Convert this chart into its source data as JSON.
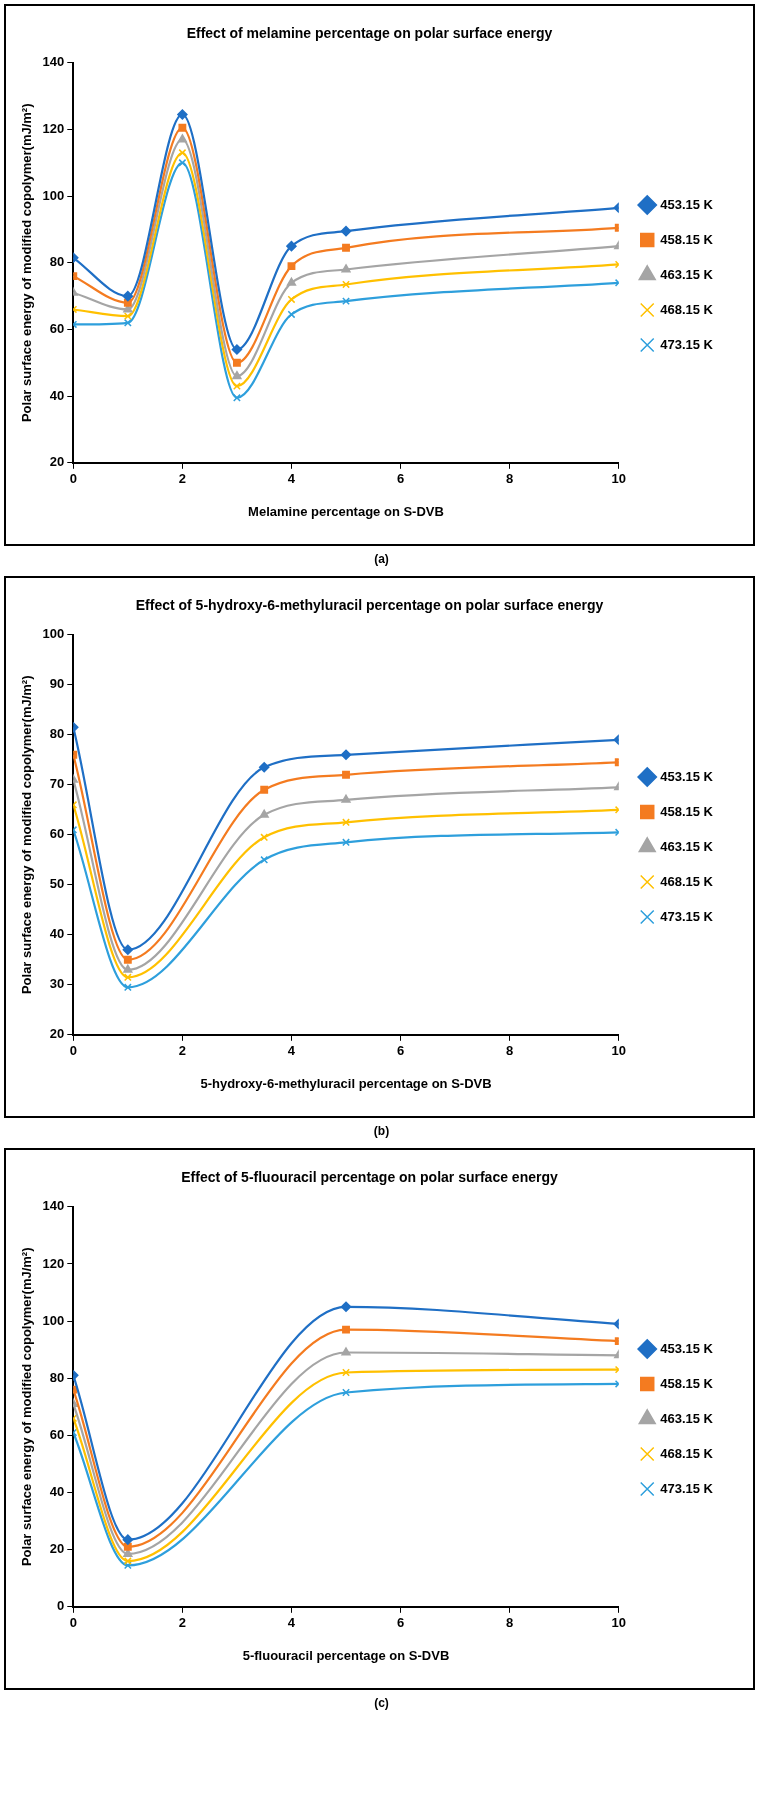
{
  "chart_data": [
    {
      "type": "line",
      "title": "Effect of melamine percentage on polar surface energy",
      "xlabel": "Melamine percentage on S-DVB",
      "ylabel": "Polar surface energy of modified copolymer(mJ/m²)",
      "annotations": [
        "(a)"
      ],
      "x": [
        0,
        1,
        2,
        3,
        4,
        5,
        10
      ],
      "xlim": [
        0,
        10
      ],
      "xticks": [
        0,
        2,
        4,
        6,
        8,
        10
      ],
      "ylim": [
        20,
        140
      ],
      "yticks": [
        20,
        40,
        60,
        80,
        100,
        120,
        140
      ],
      "grid": false,
      "legend": "right",
      "line_style": "solid",
      "series": [
        {
          "name": "453.15 K",
          "color": "#1f6fc5",
          "marker": "diamond",
          "values": [
            81.5,
            70,
            124.5,
            54,
            85,
            89.5,
            96.5
          ]
        },
        {
          "name": "458.15 K",
          "color": "#f47b20",
          "marker": "square",
          "values": [
            76,
            68,
            120.5,
            50,
            79,
            84.5,
            90.5
          ]
        },
        {
          "name": "463.15 K",
          "color": "#a5a5a5",
          "marker": "triangle",
          "values": [
            71,
            66,
            117,
            46,
            74,
            78,
            85
          ]
        },
        {
          "name": "468.15 K",
          "color": "#ffc000",
          "marker": "cross",
          "values": [
            66,
            64,
            113,
            43,
            69,
            73.5,
            79.5
          ]
        },
        {
          "name": "473.15 K",
          "color": "#2e9fdc",
          "marker": "cross",
          "values": [
            61.5,
            62,
            110,
            39.5,
            64.5,
            68.5,
            74
          ]
        }
      ]
    },
    {
      "type": "line",
      "title": "Effect of 5-hydroxy-6-methyluracil percentage on polar surface energy",
      "xlabel": "5-hydroxy-6-methyluracil percentage on S-DVB",
      "ylabel": "Polar surface energy of modified copolymer(mJ/m²)",
      "annotations": [
        "(b)"
      ],
      "x": [
        0,
        1,
        3.5,
        5,
        10
      ],
      "xlim": [
        0,
        10
      ],
      "xticks": [
        0,
        2,
        4,
        6,
        8,
        10
      ],
      "ylim": [
        20,
        100
      ],
      "yticks": [
        20,
        30,
        40,
        50,
        60,
        70,
        80,
        90,
        100
      ],
      "grid": false,
      "legend": "right",
      "line_style": "solid",
      "series": [
        {
          "name": "453.15 K",
          "color": "#1f6fc5",
          "marker": "diamond",
          "values": [
            81.5,
            37,
            73.5,
            76,
            79
          ]
        },
        {
          "name": "458.15 K",
          "color": "#f47b20",
          "marker": "square",
          "values": [
            76,
            35,
            69,
            72,
            74.5
          ]
        },
        {
          "name": "463.15 K",
          "color": "#a5a5a5",
          "marker": "triangle",
          "values": [
            71,
            33,
            64,
            67,
            69.5
          ]
        },
        {
          "name": "468.15 K",
          "color": "#ffc000",
          "marker": "cross",
          "values": [
            66,
            31.5,
            59.5,
            62.5,
            65
          ]
        },
        {
          "name": "473.15 K",
          "color": "#2e9fdc",
          "marker": "cross",
          "values": [
            61,
            29.5,
            55,
            58.5,
            60.5
          ]
        }
      ]
    },
    {
      "type": "line",
      "title": "Effect of 5-fluouracil percentage on polar surface energy",
      "xlabel": "5-fluouracil percentage on S-DVB",
      "ylabel": "Polar surface energy of modified copolymer(mJ/m²)",
      "annotations": [
        "(c)"
      ],
      "x": [
        0,
        1,
        5,
        10
      ],
      "xlim": [
        0,
        10
      ],
      "xticks": [
        0,
        2,
        4,
        6,
        8,
        10
      ],
      "ylim": [
        0,
        140
      ],
      "yticks": [
        0,
        20,
        40,
        60,
        80,
        100,
        120,
        140
      ],
      "grid": false,
      "legend": "right",
      "line_style": "solid",
      "series": [
        {
          "name": "453.15 K",
          "color": "#1f6fc5",
          "marker": "diamond",
          "values": [
            81,
            23.5,
            105,
            99
          ]
        },
        {
          "name": "458.15 K",
          "color": "#f47b20",
          "marker": "square",
          "values": [
            76,
            21,
            97,
            93
          ]
        },
        {
          "name": "463.15 K",
          "color": "#a5a5a5",
          "marker": "triangle",
          "values": [
            71,
            18.5,
            89,
            88
          ]
        },
        {
          "name": "468.15 K",
          "color": "#ffc000",
          "marker": "cross",
          "values": [
            66,
            16,
            82,
            83
          ]
        },
        {
          "name": "473.15 K",
          "color": "#2e9fdc",
          "marker": "cross",
          "values": [
            61,
            14.5,
            75,
            78
          ]
        }
      ]
    }
  ]
}
